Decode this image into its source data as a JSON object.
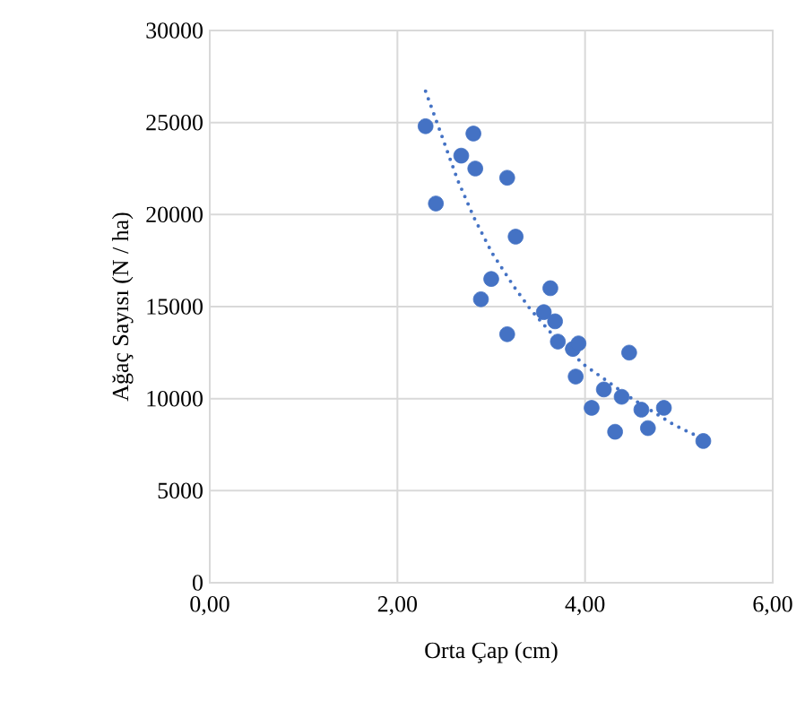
{
  "chart_data": {
    "type": "scatter",
    "xlabel": "Orta Çap (cm)",
    "ylabel": "Ağaç Sayısı (N / ha)",
    "xlim": [
      0,
      6
    ],
    "xticks": [
      {
        "value": 0,
        "label": "0,00"
      },
      {
        "value": 2,
        "label": "2,00"
      },
      {
        "value": 4,
        "label": "4,00"
      },
      {
        "value": 6,
        "label": "6,00"
      }
    ],
    "ylim": [
      0,
      30000
    ],
    "yticks": [
      0,
      5000,
      10000,
      15000,
      20000,
      25000,
      30000
    ],
    "grid": true,
    "series": [
      {
        "marker": "circle",
        "color": "#4472c4",
        "x": [
          2.3,
          2.41,
          2.68,
          2.81,
          2.83,
          3.17,
          3.26,
          3.0,
          2.89,
          3.17,
          3.63,
          3.56,
          3.68,
          3.71,
          3.87,
          3.93,
          3.9,
          4.47,
          4.2,
          4.39,
          4.07,
          4.6,
          4.84,
          4.32,
          4.67,
          5.26
        ],
        "values": [
          24800,
          20600,
          23200,
          24400,
          22500,
          22000,
          18800,
          16500,
          15400,
          13500,
          16000,
          14700,
          14200,
          13100,
          12700,
          13000,
          11200,
          12500,
          10500,
          10100,
          9500,
          9400,
          9500,
          8200,
          8400,
          7700
        ]
      },
      {
        "type": "line",
        "color": "#4472c4",
        "line_style": "dotted",
        "marker": "none",
        "x": [
          2.3,
          2.45,
          2.64,
          2.81,
          3.01,
          3.24,
          3.41,
          3.7,
          4.0,
          4.5,
          4.94,
          5.26
        ],
        "values": [
          26700,
          24600,
          21900,
          19900,
          17900,
          16100,
          14900,
          13200,
          11800,
          10000,
          8600,
          7800
        ]
      }
    ]
  }
}
